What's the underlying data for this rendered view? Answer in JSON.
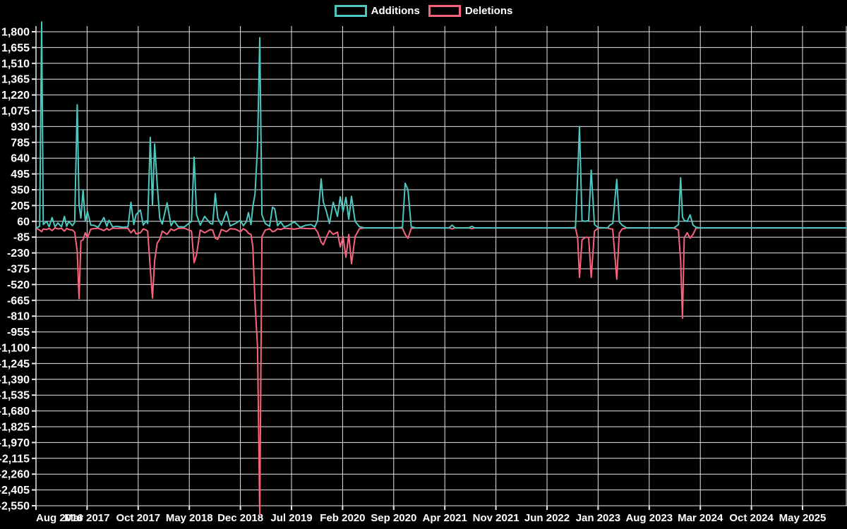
{
  "legend": {
    "items": [
      {
        "label": "Additions",
        "color": "#4dc8c0"
      },
      {
        "label": "Deletions",
        "color": "#f8647d"
      }
    ]
  },
  "colors": {
    "background": "#000000",
    "grid": "#e8e8e8",
    "text": "#ffffff",
    "additions": "#4dc8c0",
    "deletions": "#f8647d"
  },
  "chart_data": {
    "type": "line",
    "title": "",
    "xlabel": "",
    "ylabel": "",
    "legend_position": "top-center",
    "grid": true,
    "x_axis": {
      "tick_labels": [
        "Aug 2016",
        "Mar 2017",
        "Oct 2017",
        "May 2018",
        "Dec 2018",
        "Jul 2019",
        "Feb 2020",
        "Sep 2020",
        "Apr 2021",
        "Nov 2021",
        "Jun 2022",
        "Jan 2023",
        "Aug 2023",
        "Mar 2024",
        "Oct 2024",
        "May 2025"
      ],
      "tick_interval_months": 7
    },
    "y_axis": {
      "max": 1800,
      "min": -2550,
      "step": 145,
      "tick_labels": [
        "1,800",
        "1,655",
        "1,510",
        "1,365",
        "1,220",
        "1,075",
        "930",
        "785",
        "640",
        "495",
        "350",
        "205",
        "60",
        "-85",
        "-230",
        "-375",
        "-520",
        "-665",
        "-810",
        "-955",
        "-1,100",
        "-1,245",
        "-1,390",
        "-1,535",
        "-1,680",
        "-1,825",
        "-1,970",
        "-2,115",
        "-2,260",
        "-2,405",
        "-2,550"
      ]
    },
    "x_unit": "months since Aug 2016 (weekly commit activity, values estimated from plot)",
    "x": [
      0.1,
      0.5,
      0.77,
      1.0,
      1.45,
      1.8,
      2.2,
      2.6,
      3.0,
      3.5,
      3.9,
      4.2,
      4.5,
      5.0,
      5.3,
      5.65,
      5.9,
      6.15,
      6.45,
      6.75,
      7.05,
      7.5,
      7.9,
      8.5,
      9.3,
      9.7,
      10.0,
      10.5,
      11.0,
      12.0,
      12.6,
      13.0,
      13.4,
      13.7,
      14.3,
      14.7,
      15.1,
      15.3,
      15.65,
      15.95,
      16.25,
      16.6,
      16.95,
      17.3,
      17.95,
      18.5,
      18.9,
      19.5,
      20.3,
      21.3,
      21.66,
      22.0,
      22.5,
      23.1,
      23.9,
      24.2,
      24.56,
      24.9,
      25.4,
      26.1,
      26.6,
      27.3,
      28.0,
      28.4,
      28.8,
      29.1,
      29.45,
      29.7,
      30.0,
      30.35,
      30.65,
      30.95,
      31.4,
      32.0,
      32.4,
      32.7,
      33.1,
      33.5,
      34.0,
      34.5,
      35.4,
      36.2,
      37.0,
      37.7,
      38.2,
      38.58,
      39.06,
      39.35,
      39.74,
      40.2,
      40.71,
      41.29,
      41.68,
      42.06,
      42.45,
      42.84,
      43.22,
      43.71,
      44.3,
      45.0,
      47.0,
      49.5,
      50.2,
      50.57,
      50.95,
      51.4,
      52.0,
      54.0,
      56.6,
      57.0,
      57.4,
      59.3,
      59.7,
      60.1,
      65.0,
      70.0,
      73.5,
      73.9,
      74.2,
      74.45,
      74.8,
      75.3,
      75.7,
      76.05,
      76.5,
      77.0,
      78.3,
      78.6,
      79.0,
      79.55,
      79.9,
      80.3,
      80.9,
      83.0,
      87.4,
      88.0,
      88.3,
      88.55,
      88.8,
      89.2,
      89.6,
      90.0,
      90.4,
      91.0,
      95.0,
      100.0,
      105.0,
      111.0
    ],
    "series": [
      {
        "name": "Additions",
        "color": "#4dc8c0",
        "values": [
          0,
          15,
          1890,
          30,
          60,
          10,
          95,
          10,
          45,
          10,
          105,
          15,
          60,
          20,
          50,
          1130,
          210,
          90,
          350,
          60,
          150,
          25,
          25,
          5,
          95,
          15,
          70,
          8,
          15,
          5,
          10,
          235,
          30,
          120,
          165,
          25,
          65,
          40,
          830,
          210,
          770,
          400,
          90,
          35,
          230,
          20,
          65,
          10,
          8,
          60,
          650,
          120,
          25,
          105,
          40,
          35,
          315,
          90,
          25,
          150,
          18,
          40,
          70,
          20,
          55,
          140,
          30,
          195,
          310,
          755,
          1745,
          120,
          40,
          15,
          190,
          175,
          20,
          55,
          8,
          20,
          55,
          5,
          25,
          30,
          8,
          70,
          450,
          240,
          160,
          40,
          235,
          105,
          285,
          150,
          280,
          80,
          290,
          60,
          10,
          0,
          0,
          0,
          5,
          410,
          350,
          10,
          0,
          0,
          0,
          25,
          0,
          0,
          14,
          0,
          0,
          0,
          0,
          5,
          480,
          930,
          65,
          60,
          70,
          530,
          30,
          3,
          0,
          25,
          40,
          445,
          55,
          25,
          0,
          0,
          0,
          30,
          460,
          100,
          70,
          60,
          120,
          25,
          5,
          0,
          0,
          0,
          0,
          0
        ]
      },
      {
        "name": "Deletions",
        "color": "#f8647d",
        "values": [
          -5,
          -20,
          -35,
          -10,
          -15,
          -5,
          -25,
          0,
          -10,
          -5,
          -30,
          -5,
          -15,
          -20,
          -40,
          -215,
          -650,
          -120,
          -110,
          -45,
          -90,
          -12,
          -8,
          -3,
          -25,
          -5,
          -20,
          -3,
          -5,
          -3,
          -5,
          -45,
          -15,
          -55,
          -45,
          -10,
          -20,
          -30,
          -370,
          -645,
          -300,
          -140,
          -105,
          -30,
          -60,
          -10,
          -25,
          -4,
          -3,
          -30,
          -320,
          -245,
          -20,
          -45,
          -15,
          -20,
          -95,
          -105,
          -15,
          -35,
          -8,
          -12,
          -35,
          -8,
          -25,
          -50,
          -60,
          -175,
          -690,
          -1100,
          -2635,
          -80,
          -20,
          -8,
          -35,
          -30,
          -8,
          -15,
          -3,
          -6,
          -12,
          -2,
          -6,
          -8,
          -4,
          -40,
          -130,
          -155,
          -90,
          -25,
          -60,
          -40,
          -175,
          -80,
          -270,
          -60,
          -330,
          -80,
          -8,
          0,
          0,
          0,
          -3,
          -60,
          -95,
          -5,
          0,
          0,
          0,
          -10,
          0,
          0,
          -8,
          0,
          0,
          0,
          0,
          -3,
          -90,
          -455,
          -110,
          -85,
          -90,
          -455,
          -30,
          -2,
          0,
          -8,
          -12,
          -470,
          -50,
          -10,
          0,
          0,
          0,
          -20,
          -300,
          -830,
          -90,
          -45,
          -95,
          -60,
          -3,
          0,
          0,
          0,
          0,
          0
        ]
      }
    ]
  }
}
